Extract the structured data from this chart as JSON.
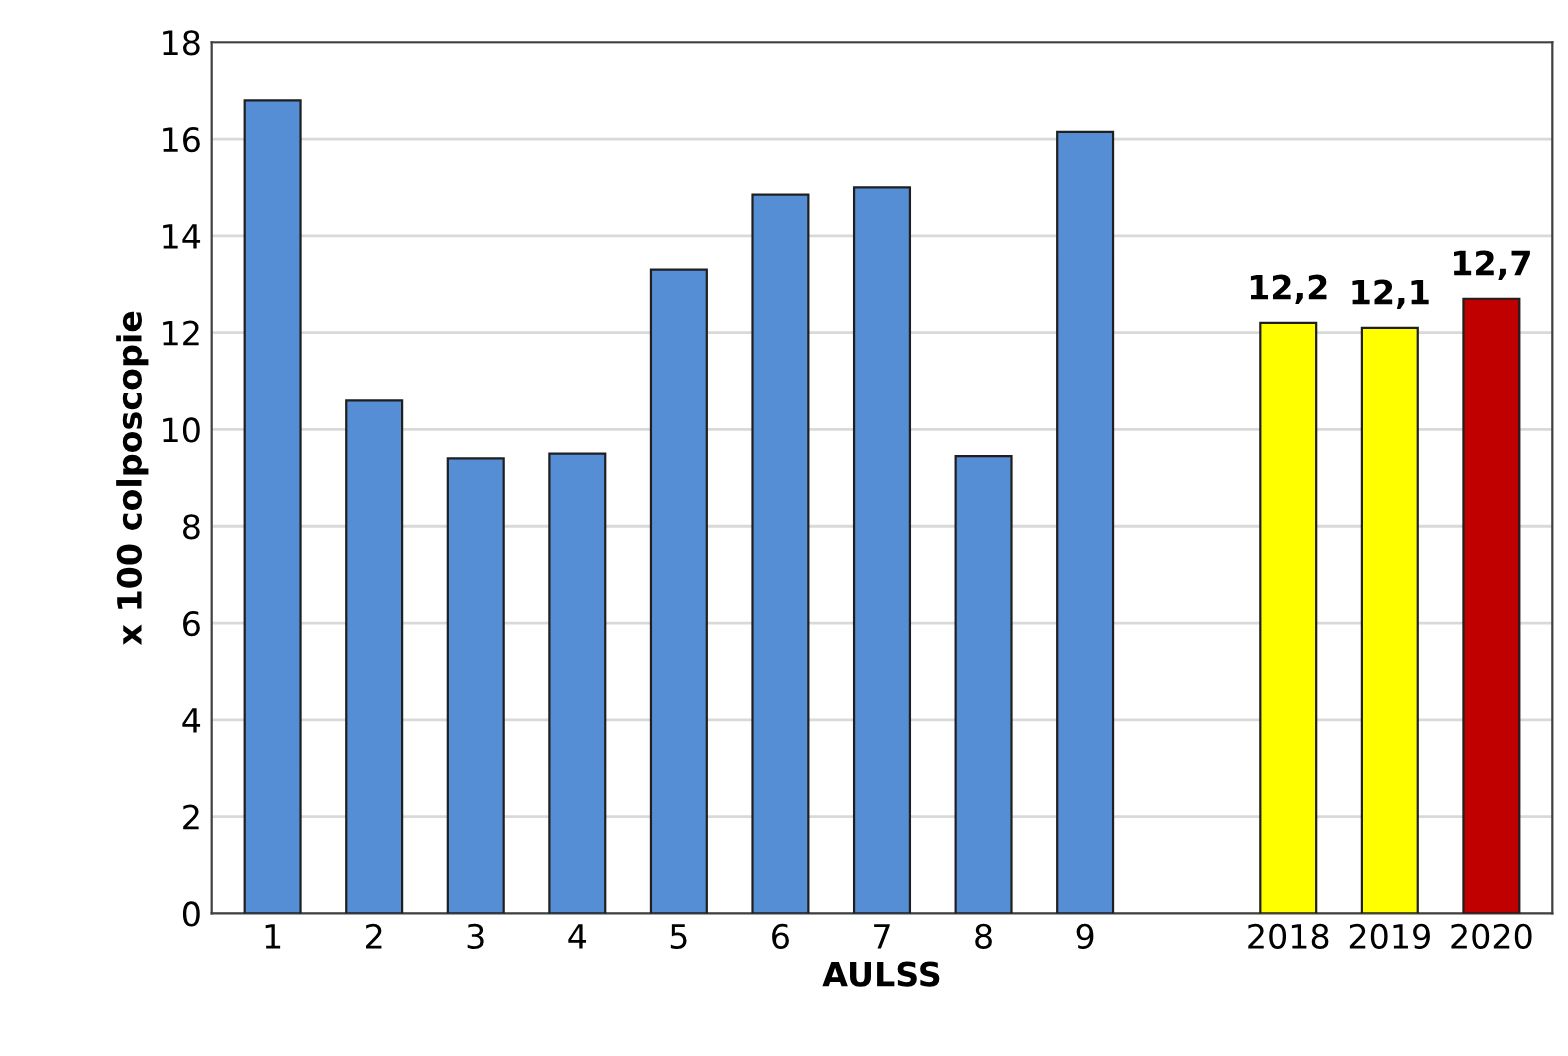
{
  "chart_data": {
    "type": "bar",
    "xlabel": "AULSS",
    "ylabel": "x 100 colposcopie",
    "categories": [
      "1",
      "2",
      "3",
      "4",
      "5",
      "6",
      "7",
      "8",
      "9",
      null,
      "2018",
      "2019",
      "2020"
    ],
    "values": [
      16.8,
      10.6,
      9.4,
      9.5,
      13.3,
      14.85,
      15.0,
      9.45,
      16.15,
      null,
      12.2,
      12.1,
      12.7
    ],
    "colors": [
      "#558ed5",
      "#558ed5",
      "#558ed5",
      "#558ed5",
      "#558ed5",
      "#558ed5",
      "#558ed5",
      "#558ed5",
      "#558ed5",
      null,
      "#ffff00",
      "#ffff00",
      "#c00000"
    ],
    "value_labels": [
      null,
      null,
      null,
      null,
      null,
      null,
      null,
      null,
      null,
      null,
      "12,2",
      "12,1",
      "12,7"
    ],
    "ylim": [
      0,
      18
    ],
    "yticks": [
      0,
      2,
      4,
      6,
      8,
      10,
      12,
      14,
      16,
      18
    ],
    "grid": "y",
    "legend": false
  }
}
